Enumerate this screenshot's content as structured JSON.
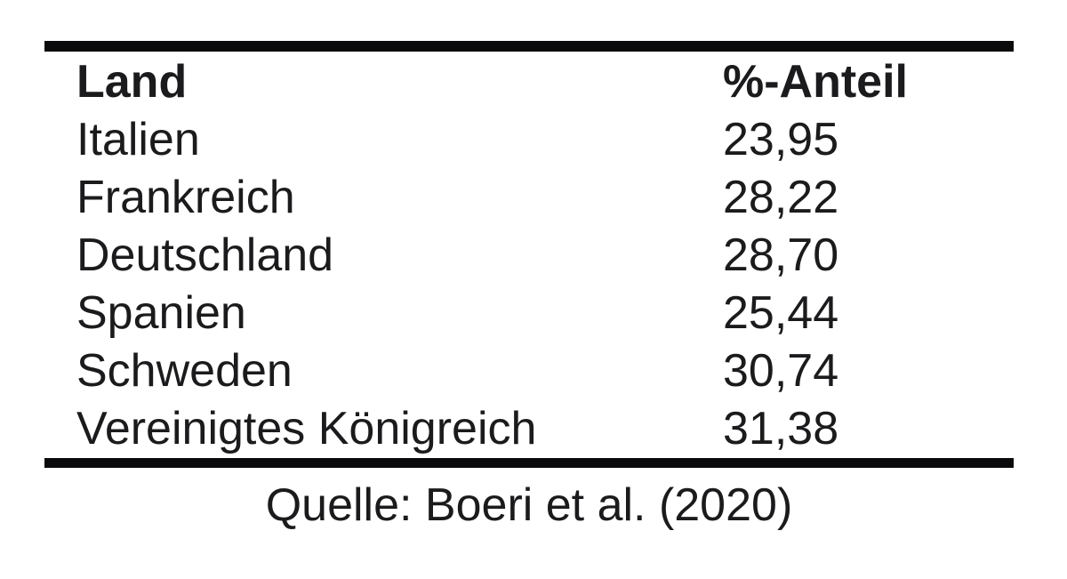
{
  "figure": {
    "header": {
      "land": "Land",
      "anteil": "%-Anteil"
    },
    "rows": [
      {
        "land": "Italien",
        "anteil": "23,95"
      },
      {
        "land": "Frankreich",
        "anteil": "28,22"
      },
      {
        "land": "Deutschland",
        "anteil": "28,70"
      },
      {
        "land": "Spanien",
        "anteil": "25,44"
      },
      {
        "land": "Schweden",
        "anteil": "30,74"
      },
      {
        "land": "Vereinigtes Königreich",
        "anteil": "31,38"
      }
    ],
    "caption": "Quelle: Boeri et al. (2020)"
  },
  "colors": {
    "text": "#1b1b1d",
    "rule": "#0a0a0c",
    "background": "#ffffff"
  },
  "chart_data": {
    "type": "table",
    "columns": [
      "Land",
      "%-Anteil"
    ],
    "rows": [
      [
        "Italien",
        23.95
      ],
      [
        "Frankreich",
        28.22
      ],
      [
        "Deutschland",
        28.7
      ],
      [
        "Spanien",
        25.44
      ],
      [
        "Schweden",
        30.74
      ],
      [
        "Vereinigtes Königreich",
        31.38
      ]
    ],
    "source": "Quelle: Boeri et al. (2020)"
  }
}
